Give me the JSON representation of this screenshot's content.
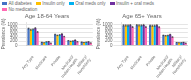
{
  "chart_data": [
    {
      "type": "bar",
      "title": "Age 18-64 Years",
      "ylabel": "Prevalence (%)",
      "categories": [
        "Any Type",
        "Medicare",
        "Private",
        "Medicaid/\nIndian Health",
        "Military/\nNonelderly"
      ],
      "series": [
        {
          "name": "All diabetes",
          "color": "#4472c4",
          "values": [
            800,
            150,
            520,
            230,
            160
          ],
          "errors": [
            24,
            4.5,
            15.6,
            6.9,
            4.8
          ]
        },
        {
          "name": "Insulin only",
          "color": "#ffc000",
          "values": [
            740,
            130,
            480,
            200,
            140
          ],
          "errors": [
            22.2,
            3.9,
            14.4,
            6,
            4.2
          ]
        },
        {
          "name": "Oral meds only",
          "color": "#00b0f0",
          "values": [
            760,
            170,
            500,
            215,
            155
          ],
          "errors": [
            22.8,
            5.1,
            15,
            6.45,
            4.65
          ]
        },
        {
          "name": "Insulin + oral meds",
          "color": "#7030a0",
          "values": [
            820,
            185,
            545,
            255,
            175
          ],
          "errors": [
            24.6,
            5.55,
            16.35,
            7.65,
            5.25
          ]
        },
        {
          "name": "No medication",
          "color": "#ff69b4",
          "values": [
            640,
            110,
            420,
            175,
            120
          ],
          "errors": [
            19.2,
            3.3,
            12.6,
            5.25,
            3.6
          ]
        }
      ],
      "ylim": [
        0,
        1100
      ],
      "yticks": [
        0,
        200,
        400,
        600,
        800,
        1000
      ],
      "grid": true,
      "legend": "top"
    },
    {
      "type": "bar",
      "title": "Age 65+ Years",
      "ylabel": "Prevalence (%)",
      "categories": [
        "Any Type",
        "Medicare",
        "Private",
        "Medicaid/\nIndian Health",
        "Military/\nNonelderly"
      ],
      "series": [
        {
          "name": "All diabetes",
          "color": "#4472c4",
          "values": [
            950,
            960,
            940,
            480,
            140
          ],
          "errors": [
            28.5,
            28.8,
            28.2,
            14.4,
            4.2
          ]
        },
        {
          "name": "Insulin only",
          "color": "#ffc000",
          "values": [
            945,
            950,
            935,
            460,
            130
          ],
          "errors": [
            28.35,
            28.5,
            28.05,
            13.8,
            3.9
          ]
        },
        {
          "name": "Oral meds only",
          "color": "#00b0f0",
          "values": [
            945,
            948,
            938,
            475,
            130
          ],
          "errors": [
            28.35,
            28.44,
            28.14,
            14.25,
            3.9
          ]
        },
        {
          "name": "Insulin + oral meds",
          "color": "#7030a0",
          "values": [
            960,
            968,
            955,
            515,
            148
          ],
          "errors": [
            28.8,
            29.04,
            28.65,
            15.45,
            4.44
          ]
        },
        {
          "name": "No medication",
          "color": "#ff69b4",
          "values": [
            875,
            878,
            862,
            400,
            110
          ],
          "errors": [
            26.25,
            26.34,
            25.86,
            12,
            3.3
          ]
        }
      ],
      "ylim": [
        0,
        1100
      ],
      "yticks": [
        0,
        200,
        400,
        600,
        800,
        1000
      ],
      "grid": true
    }
  ]
}
